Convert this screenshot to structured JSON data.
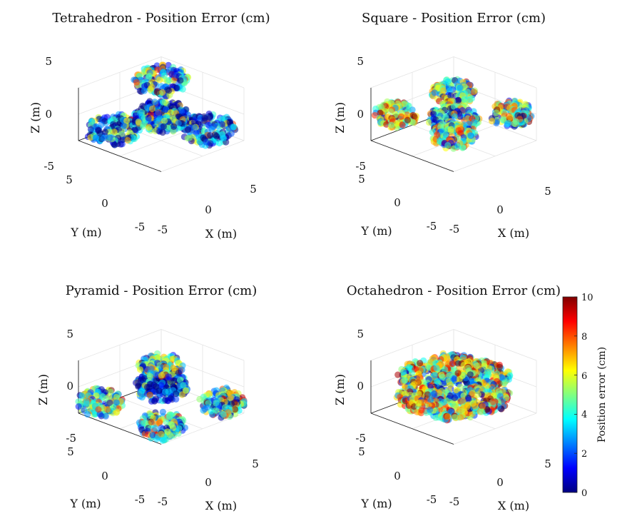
{
  "figure": {
    "colormap": "jet",
    "colors": [
      "#000080",
      "#0000ff",
      "#0080ff",
      "#00ffff",
      "#80ff80",
      "#ffff00",
      "#ff8000",
      "#ff0000",
      "#800000"
    ],
    "colorbar": {
      "label": "Position error (cm)",
      "min": 0,
      "max": 10,
      "ticks": [
        "0",
        "2",
        "4",
        "6",
        "8",
        "10"
      ]
    }
  },
  "chart_data": [
    {
      "type": "scatter",
      "title": "Tetrahedron - Position Error (cm)",
      "xlabel": "X (m)",
      "ylabel": "Y (m)",
      "zlabel": "Z (m)",
      "xlim": [
        -5,
        5
      ],
      "ylim": [
        -5,
        5
      ],
      "zlim": [
        -5,
        5
      ],
      "x_ticks": [
        "-5",
        "0",
        "5"
      ],
      "y_ticks": [
        "-5",
        "0",
        "5"
      ],
      "z_ticks": [
        "-5",
        "0",
        "5"
      ],
      "grid": true,
      "shape": "tetrahedron",
      "clusters": [
        {
          "x": 0,
          "y": 0,
          "z": 0,
          "radius": 2.2,
          "mean_error": 1.0
        },
        {
          "x": 2.9,
          "y": 2.9,
          "z": 2.9,
          "radius": 2.4,
          "mean_error": 2.8
        },
        {
          "x": 2.9,
          "y": -2.9,
          "z": -2.9,
          "radius": 2.4,
          "mean_error": 2.6
        },
        {
          "x": -2.9,
          "y": 2.9,
          "z": -2.9,
          "radius": 2.4,
          "mean_error": 2.6
        },
        {
          "x": -2.9,
          "y": -2.9,
          "z": 2.9,
          "radius": 2.4,
          "mean_error": 3.2
        }
      ]
    },
    {
      "type": "scatter",
      "title": "Square - Position Error (cm)",
      "xlabel": "X (m)",
      "ylabel": "Y (m)",
      "zlabel": "Z (m)",
      "xlim": [
        -5,
        5
      ],
      "ylim": [
        -5,
        5
      ],
      "zlim": [
        -5,
        5
      ],
      "x_ticks": [
        "-5",
        "0",
        "5"
      ],
      "y_ticks": [
        "-5",
        "0",
        "5"
      ],
      "z_ticks": [
        "-5",
        "0",
        "5"
      ],
      "grid": true,
      "shape": "square",
      "clusters": [
        {
          "x": 3.5,
          "y": 3.5,
          "z": 0,
          "radius": 2.0,
          "mean_error": 5.0
        },
        {
          "x": 3.5,
          "y": -3.5,
          "z": 0,
          "radius": 2.0,
          "mean_error": 4.8
        },
        {
          "x": -3.5,
          "y": 3.5,
          "z": 0,
          "radius": 2.0,
          "mean_error": 5.2
        },
        {
          "x": -3.5,
          "y": -3.5,
          "z": 0,
          "radius": 2.0,
          "mean_error": 4.6
        },
        {
          "x": 0,
          "y": 0,
          "z": -1.0,
          "radius": 2.3,
          "mean_error": 3.5
        }
      ]
    },
    {
      "type": "scatter",
      "title": "Pyramid - Position Error (cm)",
      "xlabel": "X (m)",
      "ylabel": "Y (m)",
      "zlabel": "Z (m)",
      "xlim": [
        -5,
        5
      ],
      "ylim": [
        -5,
        5
      ],
      "zlim": [
        -5,
        5
      ],
      "x_ticks": [
        "-5",
        "0",
        "5"
      ],
      "y_ticks": [
        "-5",
        "0",
        "5"
      ],
      "z_ticks": [
        "-5",
        "0",
        "5"
      ],
      "grid": true,
      "shape": "pyramid",
      "clusters": [
        {
          "x": 0,
          "y": 0,
          "z": 0,
          "radius": 2.3,
          "mean_error": 1.2
        },
        {
          "x": 0,
          "y": 0,
          "z": 4.0,
          "radius": 2.0,
          "mean_error": 4.5
        },
        {
          "x": 3.8,
          "y": 3.8,
          "z": -3.0,
          "radius": 2.2,
          "mean_error": 4.0
        },
        {
          "x": 3.8,
          "y": -3.8,
          "z": -3.0,
          "radius": 2.2,
          "mean_error": 4.2
        },
        {
          "x": -3.8,
          "y": 3.8,
          "z": -3.0,
          "radius": 2.2,
          "mean_error": 4.4
        },
        {
          "x": -3.8,
          "y": -3.8,
          "z": -3.0,
          "radius": 2.2,
          "mean_error": 3.8
        }
      ]
    },
    {
      "type": "scatter",
      "title": "Octahedron - Position Error (cm)",
      "xlabel": "X (m)",
      "ylabel": "Y (m)",
      "zlabel": "Z (m)",
      "xlim": [
        -5,
        5
      ],
      "ylim": [
        -5,
        5
      ],
      "zlim": [
        -5,
        5
      ],
      "x_ticks": [
        "-5",
        "0",
        "5"
      ],
      "y_ticks": [
        "-5",
        "0",
        "5"
      ],
      "z_ticks": [
        "-5",
        "0",
        "5"
      ],
      "grid": true,
      "shape": "octahedron",
      "clusters": [
        {
          "x": 0,
          "y": 0,
          "z": 0,
          "radius": 2.2,
          "mean_error": 2.5
        },
        {
          "x": 4.0,
          "y": 0,
          "z": 0,
          "radius": 2.2,
          "mean_error": 5.5
        },
        {
          "x": -4.0,
          "y": 0,
          "z": 0,
          "radius": 2.2,
          "mean_error": 5.5
        },
        {
          "x": 0,
          "y": 4.0,
          "z": 0,
          "radius": 2.2,
          "mean_error": 5.6
        },
        {
          "x": 0,
          "y": -4.0,
          "z": 0,
          "radius": 2.2,
          "mean_error": 5.4
        },
        {
          "x": 0,
          "y": 0,
          "z": 4.0,
          "radius": 2.2,
          "mean_error": 5.8
        },
        {
          "x": 0,
          "y": 0,
          "z": -4.0,
          "radius": 2.2,
          "mean_error": 5.6
        }
      ]
    }
  ]
}
